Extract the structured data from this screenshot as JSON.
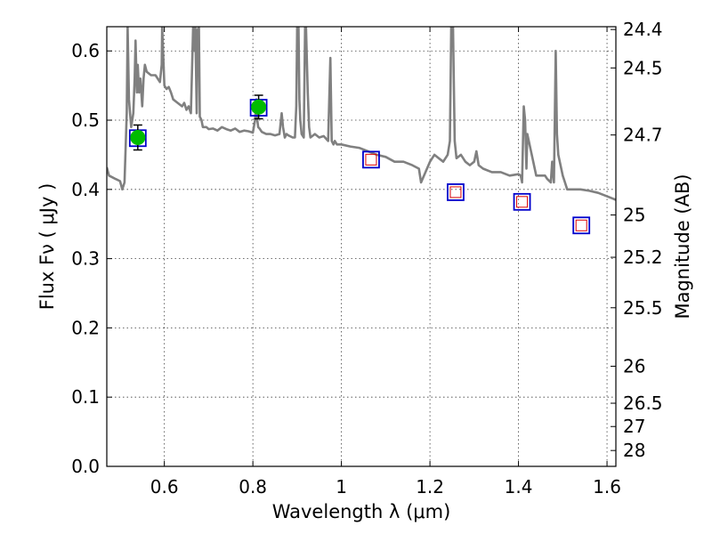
{
  "chart_data": {
    "type": "line",
    "xlabel": "Wavelength  λ (μm)",
    "ylabel": "Flux  Fν ( μJy )",
    "ylabel_right": "Magnitude (AB)",
    "xlim": [
      0.47,
      1.62
    ],
    "ylim": [
      0.0,
      0.635
    ],
    "grid": true,
    "x_ticks": [
      {
        "value": 0.6,
        "label": "0.6"
      },
      {
        "value": 0.8,
        "label": "0.8"
      },
      {
        "value": 1.0,
        "label": "1"
      },
      {
        "value": 1.2,
        "label": "1.2"
      },
      {
        "value": 1.4,
        "label": "1.4"
      },
      {
        "value": 1.6,
        "label": "1.6"
      }
    ],
    "y_ticks": [
      {
        "value": 0.0,
        "label": "0.0"
      },
      {
        "value": 0.1,
        "label": "0.1"
      },
      {
        "value": 0.2,
        "label": "0.2"
      },
      {
        "value": 0.3,
        "label": "0.3"
      },
      {
        "value": 0.4,
        "label": "0.4"
      },
      {
        "value": 0.5,
        "label": "0.5"
      },
      {
        "value": 0.6,
        "label": "0.6"
      }
    ],
    "mag_ticks": [
      {
        "value": 24.4,
        "label": "24.4"
      },
      {
        "value": 24.5,
        "label": "24.5"
      },
      {
        "value": 24.7,
        "label": "24.7"
      },
      {
        "value": 25.0,
        "label": "25"
      },
      {
        "value": 25.2,
        "label": "25.2"
      },
      {
        "value": 25.5,
        "label": "25.5"
      },
      {
        "value": 26.0,
        "label": "26"
      },
      {
        "value": 26.5,
        "label": "26.5"
      },
      {
        "value": 27.0,
        "label": "27"
      },
      {
        "value": 28.0,
        "label": "28"
      }
    ],
    "sed_model": {
      "color": "#808080",
      "x": [
        0.47,
        0.475,
        0.49,
        0.5,
        0.505,
        0.51,
        0.512,
        0.515,
        0.517,
        0.52,
        0.525,
        0.53,
        0.533,
        0.535,
        0.538,
        0.54,
        0.543,
        0.546,
        0.55,
        0.553,
        0.556,
        0.56,
        0.57,
        0.58,
        0.59,
        0.594,
        0.595,
        0.597,
        0.6,
        0.605,
        0.61,
        0.615,
        0.62,
        0.63,
        0.64,
        0.645,
        0.65,
        0.655,
        0.66,
        0.662,
        0.665,
        0.668,
        0.67,
        0.673,
        0.675,
        0.678,
        0.68,
        0.684,
        0.687,
        0.69,
        0.695,
        0.7,
        0.71,
        0.72,
        0.73,
        0.74,
        0.75,
        0.76,
        0.77,
        0.78,
        0.79,
        0.8,
        0.805,
        0.808,
        0.81,
        0.812,
        0.815,
        0.82,
        0.83,
        0.84,
        0.85,
        0.86,
        0.865,
        0.868,
        0.872,
        0.876,
        0.88,
        0.89,
        0.895,
        0.898,
        0.9,
        0.903,
        0.905,
        0.907,
        0.91,
        0.915,
        0.918,
        0.92,
        0.924,
        0.927,
        0.93,
        0.94,
        0.95,
        0.96,
        0.97,
        0.975,
        0.978,
        0.982,
        0.985,
        0.99,
        1.0,
        1.02,
        1.04,
        1.06,
        1.08,
        1.1,
        1.12,
        1.14,
        1.16,
        1.175,
        1.18,
        1.19,
        1.2,
        1.21,
        1.22,
        1.23,
        1.24,
        1.245,
        1.248,
        1.252,
        1.256,
        1.26,
        1.27,
        1.28,
        1.29,
        1.3,
        1.305,
        1.31,
        1.32,
        1.34,
        1.36,
        1.38,
        1.4,
        1.405,
        1.408,
        1.412,
        1.415,
        1.418,
        1.42,
        1.44,
        1.46,
        1.465,
        1.47,
        1.473,
        1.476,
        1.48,
        1.484,
        1.487,
        1.49,
        1.5,
        1.505,
        1.51,
        1.52,
        1.54,
        1.56,
        1.58,
        1.6,
        1.62
      ],
      "y": [
        0.432,
        0.42,
        0.415,
        0.412,
        0.4,
        0.41,
        0.45,
        0.51,
        0.635,
        0.53,
        0.49,
        0.51,
        0.56,
        0.615,
        0.54,
        0.58,
        0.54,
        0.56,
        0.52,
        0.56,
        0.58,
        0.57,
        0.565,
        0.565,
        0.555,
        0.58,
        0.635,
        0.6,
        0.55,
        0.545,
        0.548,
        0.54,
        0.53,
        0.525,
        0.52,
        0.525,
        0.515,
        0.52,
        0.51,
        0.56,
        0.635,
        0.6,
        0.635,
        0.51,
        0.63,
        0.635,
        0.505,
        0.5,
        0.49,
        0.49,
        0.49,
        0.487,
        0.488,
        0.485,
        0.49,
        0.487,
        0.485,
        0.488,
        0.483,
        0.485,
        0.484,
        0.482,
        0.5,
        0.53,
        0.5,
        0.49,
        0.488,
        0.483,
        0.48,
        0.48,
        0.478,
        0.48,
        0.51,
        0.49,
        0.475,
        0.48,
        0.478,
        0.475,
        0.475,
        0.52,
        0.635,
        0.635,
        0.53,
        0.5,
        0.48,
        0.475,
        0.635,
        0.635,
        0.54,
        0.49,
        0.475,
        0.48,
        0.475,
        0.477,
        0.47,
        0.59,
        0.47,
        0.465,
        0.47,
        0.465,
        0.465,
        0.462,
        0.46,
        0.455,
        0.45,
        0.447,
        0.44,
        0.44,
        0.435,
        0.43,
        0.41,
        0.425,
        0.44,
        0.45,
        0.445,
        0.44,
        0.45,
        0.47,
        0.635,
        0.635,
        0.47,
        0.445,
        0.45,
        0.44,
        0.435,
        0.44,
        0.455,
        0.435,
        0.43,
        0.425,
        0.425,
        0.42,
        0.422,
        0.42,
        0.41,
        0.52,
        0.5,
        0.43,
        0.48,
        0.42,
        0.42,
        0.415,
        0.412,
        0.41,
        0.44,
        0.41,
        0.6,
        0.48,
        0.45,
        0.42,
        0.41,
        0.4,
        0.4,
        0.4,
        0.398,
        0.395,
        0.39,
        0.385
      ]
    },
    "photometry": [
      {
        "x": 0.54,
        "y": 0.475,
        "err": 0.018,
        "filled": true
      },
      {
        "x": 0.813,
        "y": 0.519,
        "err": 0.017,
        "filled": true
      },
      {
        "x": 1.067,
        "y": 0.443,
        "err": 0.0,
        "filled": false
      },
      {
        "x": 1.258,
        "y": 0.396,
        "err": 0.0,
        "filled": false
      },
      {
        "x": 1.408,
        "y": 0.382,
        "err": 0.0,
        "filled": false
      },
      {
        "x": 1.542,
        "y": 0.348,
        "err": 0.0,
        "filled": false
      }
    ],
    "model_points": [
      {
        "x": 0.54,
        "y": 0.474
      },
      {
        "x": 0.813,
        "y": 0.518
      },
      {
        "x": 1.067,
        "y": 0.443
      },
      {
        "x": 1.258,
        "y": 0.396
      },
      {
        "x": 1.408,
        "y": 0.382
      },
      {
        "x": 1.542,
        "y": 0.348
      }
    ],
    "colors": {
      "model_square": "#0000cc",
      "measured_fill": "#00bb00",
      "measured_open": "#dd0000",
      "line": "#808080"
    }
  }
}
